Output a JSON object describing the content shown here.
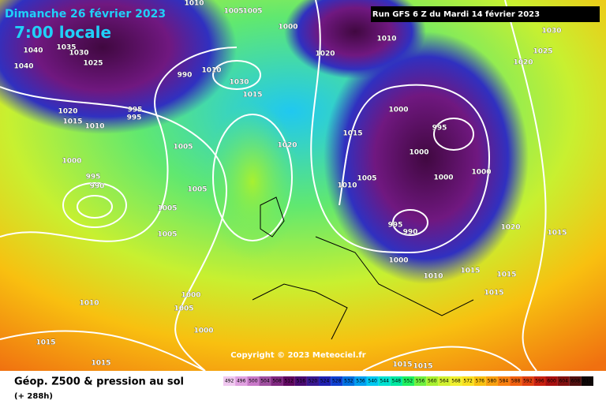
{
  "header": {
    "date": "Dimanche 26 février 2023",
    "time": "7:00 locale",
    "run": "Run GFS 6 Z du Mardi 14 février 2023"
  },
  "map": {
    "copyright": "Copyright © 2023 Meteociel.fr",
    "pressure_labels": [
      1010,
      1005,
      1005,
      1000,
      1010,
      1030,
      1020,
      1025,
      1020,
      1040,
      1035,
      1030,
      1025,
      1040,
      990,
      1010,
      1030,
      1015,
      1000,
      995,
      1020,
      1015,
      1010,
      995,
      995,
      1005,
      1020,
      1015,
      1000,
      1000,
      1000,
      995,
      990,
      1005,
      1010,
      1005,
      1000,
      1005,
      1005,
      995,
      990,
      1020,
      1015,
      1000,
      1015,
      1010,
      1015,
      1000,
      1005,
      1010,
      1015,
      1000,
      1015,
      1015,
      1015,
      1015
    ]
  },
  "footer": {
    "title": "Géop. Z500 & pression au sol",
    "lead": "(+ 288h)",
    "scale_labels": [
      492,
      496,
      500,
      504,
      508,
      512,
      516,
      520,
      524,
      528,
      532,
      536,
      540,
      544,
      548,
      552,
      556,
      560,
      564,
      568,
      572,
      576,
      580,
      584,
      588,
      592,
      596,
      600,
      604,
      608,
      612
    ],
    "scale_colors": [
      "#f0c8f0",
      "#e0a0e0",
      "#c878c8",
      "#a050a0",
      "#802880",
      "#600860",
      "#4a0a70",
      "#3a1890",
      "#2020b0",
      "#1040d0",
      "#0070e0",
      "#00a0f0",
      "#00c8f0",
      "#00e0d0",
      "#00e8a0",
      "#20f060",
      "#70f040",
      "#a8f030",
      "#d0f030",
      "#f0f030",
      "#f8e020",
      "#f8c010",
      "#f8a010",
      "#f88010",
      "#f06010",
      "#e04010",
      "#c82010",
      "#a81010",
      "#801010",
      "#501010",
      "#100808"
    ]
  }
}
